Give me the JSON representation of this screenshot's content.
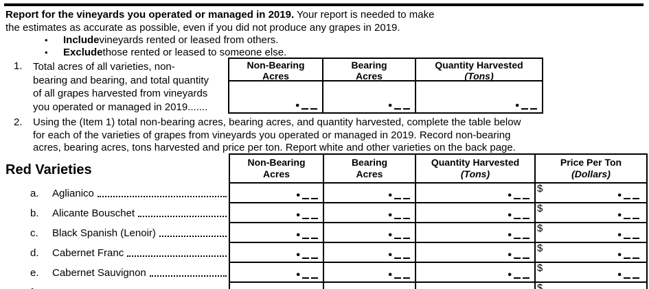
{
  "top": {
    "rule": "horizontal-rule",
    "intro_line1_bold": "Report for the vineyards you operated or managed in 2019.",
    "intro_line1_rest": "  Your report is needed to make",
    "intro_line2": "the estimates as accurate as possible, even if you did not produce any grapes in 2019.",
    "bullet_char": "•",
    "bullets": [
      {
        "bold": "Include",
        "rest": " vineyards rented or leased from others."
      },
      {
        "bold": "Exclude",
        "rest": " those rented or leased to someone else."
      }
    ]
  },
  "item1": {
    "number": "1.",
    "text_lines": [
      "Total acres of all varieties, non-",
      "bearing and bearing, and total quantity",
      "of all grapes harvested from vineyards",
      "you operated or managed in 2019......."
    ],
    "table": {
      "columns": [
        {
          "line1": "Non-Bearing",
          "line2": "Acres",
          "italic2": false
        },
        {
          "line1": "Bearing",
          "line2": "Acres",
          "italic2": false
        },
        {
          "line1": "Quantity Harvested",
          "line2": "(Tons)",
          "italic2": true
        }
      ],
      "entry_marker": "•"
    }
  },
  "item2": {
    "number": "2.",
    "text_lines": [
      "Using the (Item 1) total non-bearing acres, bearing acres, and quantity harvested, complete the table below",
      "for each of the varieties of grapes from vineyards you operated or managed in 2019. Record non-bearing",
      "acres, bearing acres, tons harvested and price per ton.  Report white and other varieties on the back page."
    ]
  },
  "red_varieties": {
    "section_title": "Red Varieties",
    "columns": [
      {
        "line1": "Non-Bearing",
        "line2": "Acres",
        "italic2": false
      },
      {
        "line1": "Bearing",
        "line2": "Acres",
        "italic2": false
      },
      {
        "line1": "Quantity Harvested",
        "line2": "(Tons)",
        "italic2": true
      },
      {
        "line1": "Price Per Ton",
        "line2": "(Dollars)",
        "italic2": true
      }
    ],
    "dollar_sign": "$",
    "entry_marker": "•",
    "rows": [
      {
        "letter": "a.",
        "name": "Aglianico"
      },
      {
        "letter": "b.",
        "name": "Alicante Bouschet"
      },
      {
        "letter": "c.",
        "name": "Black Spanish (Lenoir)"
      },
      {
        "letter": "d.",
        "name": "Cabernet Franc"
      },
      {
        "letter": "e.",
        "name": "Cabernet Sauvignon"
      },
      {
        "letter": "f.",
        "name": ""
      }
    ]
  },
  "colors": {
    "ink": "#000000",
    "paper": "#ffffff"
  }
}
